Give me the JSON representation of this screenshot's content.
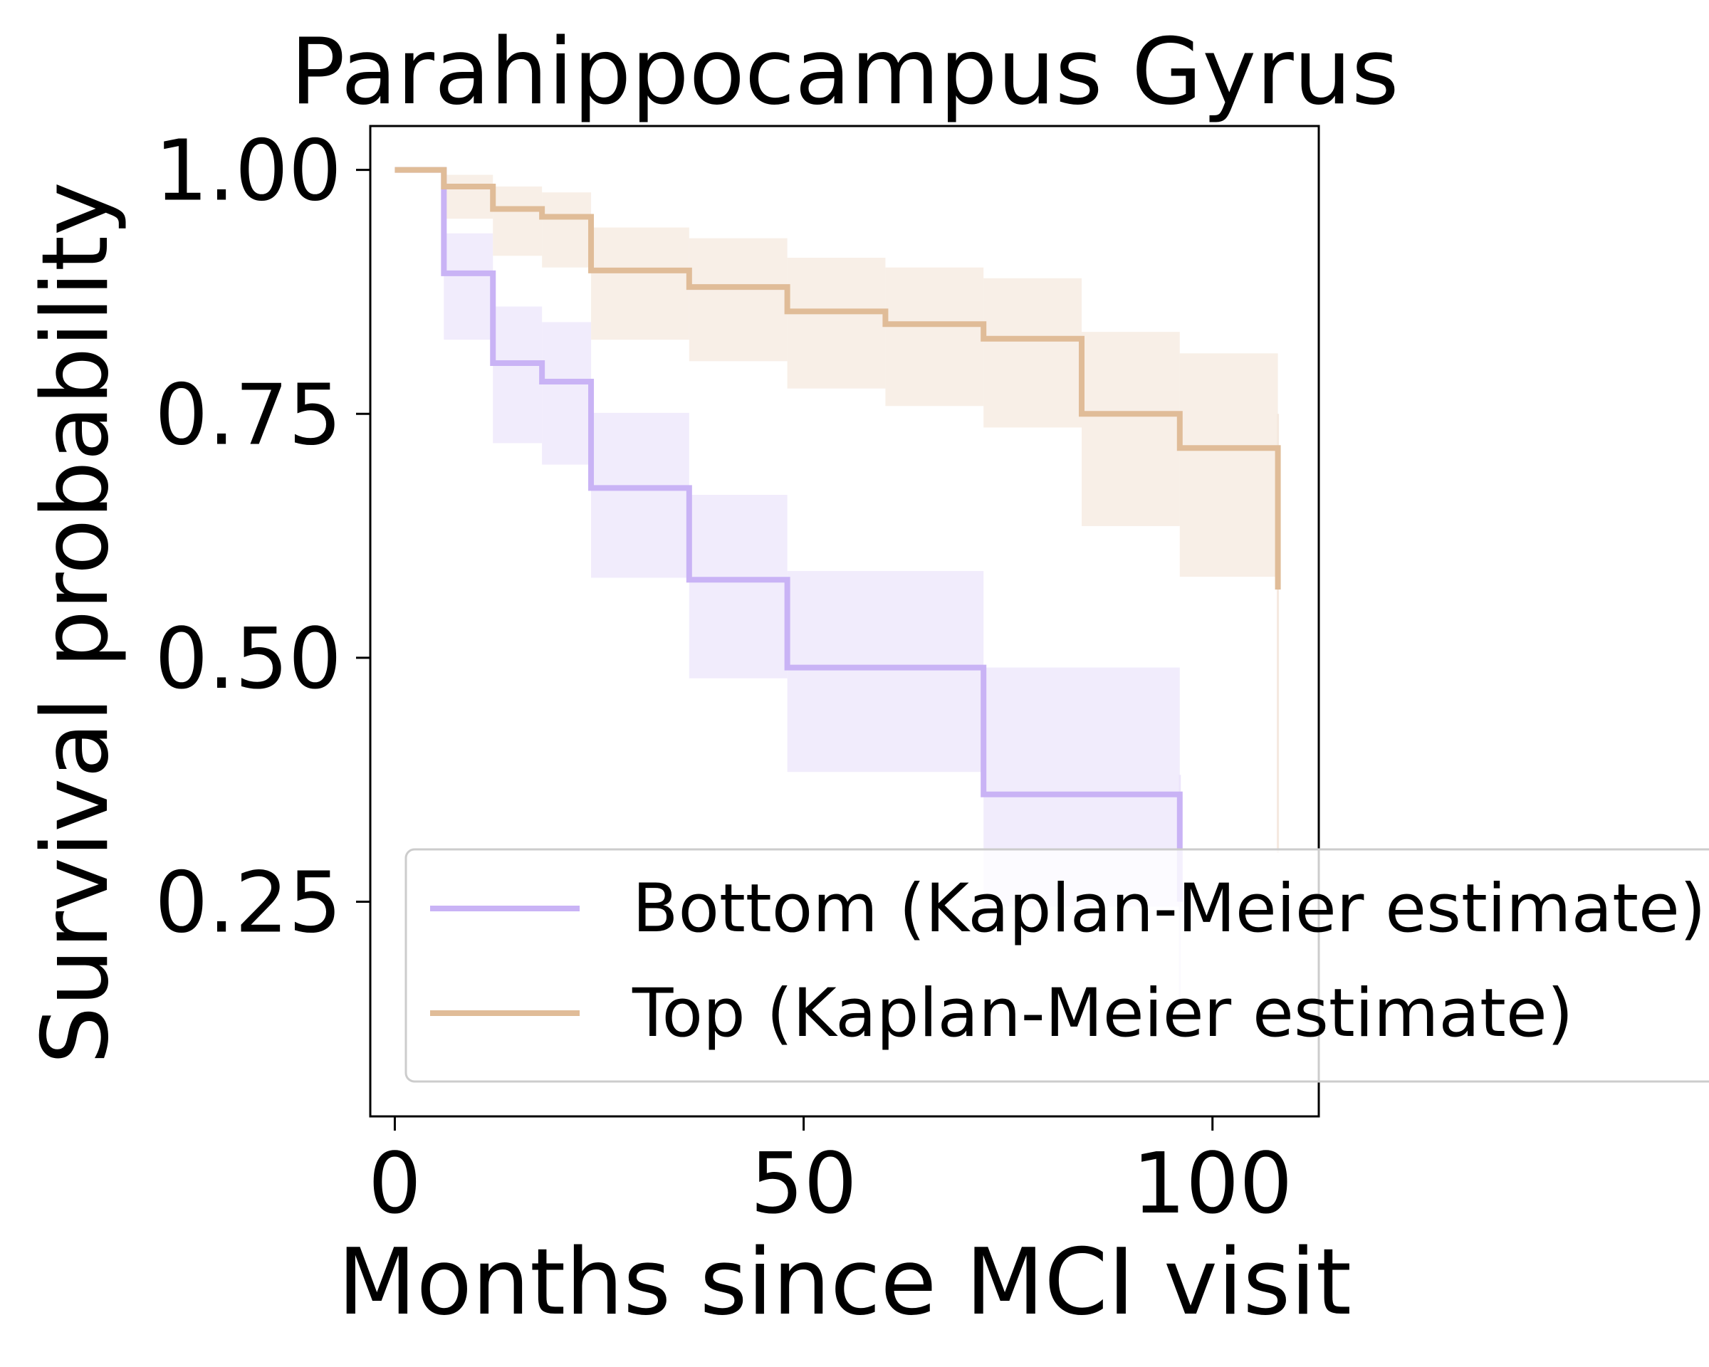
{
  "chart_data": {
    "type": "line",
    "subtype": "kaplan-meier",
    "title": "Parahippocampus Gyrus",
    "xlabel": "Months since MCI visit",
    "ylabel": "Survival probability",
    "xlim": [
      -3,
      113
    ],
    "ylim": [
      0.03,
      1.045
    ],
    "x_ticks": [
      0,
      50,
      100
    ],
    "x_tick_labels": [
      "0",
      "50",
      "100"
    ],
    "y_ticks": [
      0.25,
      0.5,
      0.75,
      1.0
    ],
    "y_tick_labels": [
      "0.25",
      "0.50",
      "0.75",
      "1.00"
    ],
    "grid": false,
    "legend_position": "lower-right",
    "series": [
      {
        "name": "Bottom (Kaplan-Meier estimate)",
        "color": "#c9b3f5",
        "ci_color": "#ece5fb",
        "points": [
          {
            "x": 0,
            "y": 1.0,
            "lo": 1.0,
            "hi": 1.0
          },
          {
            "x": 6,
            "y": 0.894,
            "lo": 0.826,
            "hi": 0.935
          },
          {
            "x": 12,
            "y": 0.802,
            "lo": 0.72,
            "hi": 0.86
          },
          {
            "x": 18,
            "y": 0.783,
            "lo": 0.698,
            "hi": 0.844
          },
          {
            "x": 24,
            "y": 0.674,
            "lo": 0.582,
            "hi": 0.751
          },
          {
            "x": 36,
            "y": 0.58,
            "lo": 0.479,
            "hi": 0.667
          },
          {
            "x": 48,
            "y": 0.49,
            "lo": 0.383,
            "hi": 0.589
          },
          {
            "x": 72,
            "y": 0.36,
            "lo": 0.245,
            "hi": 0.49
          },
          {
            "x": 96,
            "y": 0.25,
            "lo": 0.13,
            "hi": 0.38
          }
        ],
        "end_x": 96
      },
      {
        "name": "Top (Kaplan-Meier estimate)",
        "color": "#e0bc98",
        "ci_color": "#f5e9df",
        "points": [
          {
            "x": 0,
            "y": 1.0,
            "lo": 1.0,
            "hi": 1.0
          },
          {
            "x": 6,
            "y": 0.983,
            "lo": 0.95,
            "hi": 0.995
          },
          {
            "x": 12,
            "y": 0.96,
            "lo": 0.912,
            "hi": 0.983
          },
          {
            "x": 18,
            "y": 0.952,
            "lo": 0.9,
            "hi": 0.977
          },
          {
            "x": 24,
            "y": 0.897,
            "lo": 0.826,
            "hi": 0.941
          },
          {
            "x": 36,
            "y": 0.88,
            "lo": 0.804,
            "hi": 0.93
          },
          {
            "x": 48,
            "y": 0.855,
            "lo": 0.776,
            "hi": 0.91
          },
          {
            "x": 60,
            "y": 0.842,
            "lo": 0.758,
            "hi": 0.9
          },
          {
            "x": 72,
            "y": 0.827,
            "lo": 0.736,
            "hi": 0.889
          },
          {
            "x": 84,
            "y": 0.75,
            "lo": 0.635,
            "hi": 0.834
          },
          {
            "x": 96,
            "y": 0.715,
            "lo": 0.583,
            "hi": 0.812
          },
          {
            "x": 108,
            "y": 0.57,
            "lo": 0.3,
            "hi": 0.75
          }
        ],
        "end_x": 108
      }
    ]
  }
}
